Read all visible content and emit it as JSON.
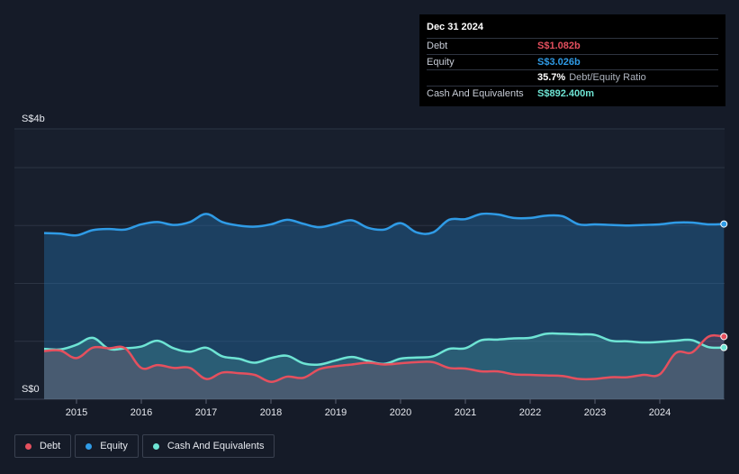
{
  "tooltip": {
    "date": "Dec 31 2024",
    "rows": [
      {
        "label": "Debt",
        "value": "S$1.082b",
        "color": "#e5505e"
      },
      {
        "label": "Equity",
        "value": "S$3.026b",
        "color": "#2f9be6"
      },
      {
        "label": "",
        "value": "35.7%",
        "sub": "Debt/Equity Ratio",
        "color": "#ffffff"
      },
      {
        "label": "Cash And Equivalents",
        "value": "S$892.400m",
        "color": "#6ee4d4"
      }
    ]
  },
  "legend": [
    {
      "label": "Debt",
      "color": "#e5505e"
    },
    {
      "label": "Equity",
      "color": "#2f9be6"
    },
    {
      "label": "Cash And Equivalents",
      "color": "#6ee4d4"
    }
  ],
  "chart_data": {
    "type": "area",
    "y_unit": "S$ billions",
    "ylim": [
      0,
      4
    ],
    "y_tick_labels": [
      "S$4b",
      "S$0"
    ],
    "x_tick_labels": [
      "2015",
      "2016",
      "2017",
      "2018",
      "2019",
      "2020",
      "2021",
      "2022",
      "2023",
      "2024"
    ],
    "x": [
      2014.5,
      2014.75,
      2015.0,
      2015.25,
      2015.5,
      2015.75,
      2016.0,
      2016.25,
      2016.5,
      2016.75,
      2017.0,
      2017.25,
      2017.5,
      2017.75,
      2018.0,
      2018.25,
      2018.5,
      2018.75,
      2019.0,
      2019.25,
      2019.5,
      2019.75,
      2020.0,
      2020.25,
      2020.5,
      2020.75,
      2021.0,
      2021.25,
      2021.5,
      2021.75,
      2022.0,
      2022.25,
      2022.5,
      2022.75,
      2023.0,
      2023.25,
      2023.5,
      2023.75,
      2024.0,
      2024.25,
      2024.5,
      2024.75,
      2024.99
    ],
    "series": [
      {
        "name": "Equity",
        "color": "#2f9be6",
        "values": [
          2.87,
          2.86,
          2.83,
          2.92,
          2.94,
          2.93,
          3.02,
          3.06,
          3.01,
          3.06,
          3.2,
          3.06,
          3.0,
          2.98,
          3.02,
          3.1,
          3.03,
          2.97,
          3.03,
          3.09,
          2.96,
          2.93,
          3.04,
          2.88,
          2.88,
          3.1,
          3.11,
          3.2,
          3.19,
          3.13,
          3.13,
          3.17,
          3.16,
          3.02,
          3.02,
          3.01,
          3.0,
          3.01,
          3.02,
          3.05,
          3.05,
          3.02,
          3.026
        ]
      },
      {
        "name": "Debt",
        "color": "#e5505e",
        "values": [
          0.83,
          0.84,
          0.71,
          0.89,
          0.88,
          0.88,
          0.54,
          0.59,
          0.54,
          0.54,
          0.35,
          0.46,
          0.45,
          0.42,
          0.3,
          0.39,
          0.37,
          0.52,
          0.57,
          0.6,
          0.63,
          0.6,
          0.62,
          0.64,
          0.64,
          0.54,
          0.53,
          0.48,
          0.48,
          0.43,
          0.42,
          0.41,
          0.4,
          0.35,
          0.35,
          0.38,
          0.38,
          0.42,
          0.43,
          0.8,
          0.81,
          1.08,
          1.082
        ]
      },
      {
        "name": "Cash And Equivalents",
        "color": "#6ee4d4",
        "values": [
          0.87,
          0.86,
          0.94,
          1.06,
          0.87,
          0.88,
          0.91,
          1.01,
          0.88,
          0.82,
          0.89,
          0.74,
          0.7,
          0.63,
          0.71,
          0.75,
          0.62,
          0.6,
          0.67,
          0.73,
          0.66,
          0.61,
          0.7,
          0.72,
          0.74,
          0.87,
          0.88,
          1.02,
          1.03,
          1.05,
          1.06,
          1.13,
          1.13,
          1.12,
          1.11,
          1.01,
          1.0,
          0.98,
          0.99,
          1.01,
          1.02,
          0.9,
          0.8924
        ]
      }
    ]
  }
}
